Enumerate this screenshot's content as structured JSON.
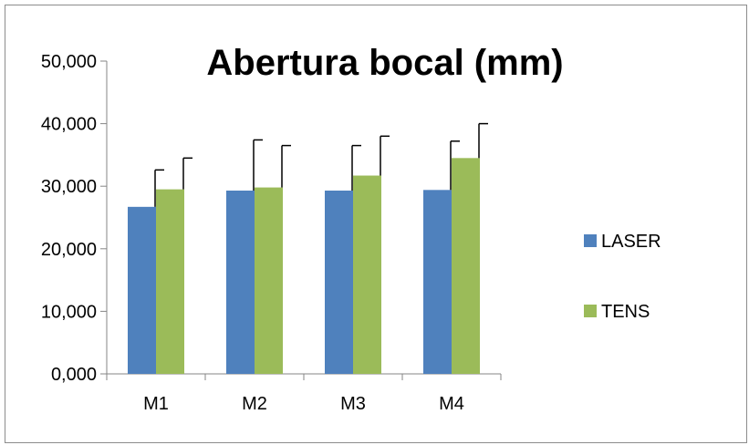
{
  "chart_data": {
    "type": "bar",
    "title": "Abertura bocal (mm)",
    "categories": [
      "M1",
      "M2",
      "M3",
      "M4"
    ],
    "series": [
      {
        "name": "LASER",
        "color": "#4F81BD",
        "values": [
          26.7,
          29.3,
          29.3,
          29.4
        ],
        "error": [
          5.9,
          8.1,
          7.2,
          7.8
        ]
      },
      {
        "name": "TENS",
        "color": "#9BBB59",
        "values": [
          29.5,
          29.8,
          31.7,
          34.5
        ],
        "error": [
          5.0,
          6.7,
          6.3,
          5.5
        ]
      }
    ],
    "ylim": [
      0,
      50
    ],
    "yticks": [
      0,
      10,
      20,
      30,
      40,
      50
    ],
    "ytick_labels": [
      "0,000",
      "10,000",
      "20,000",
      "30,000",
      "40,000",
      "50,000"
    ],
    "xlabel": "",
    "ylabel": "",
    "grid": false,
    "legend_position": "right"
  }
}
